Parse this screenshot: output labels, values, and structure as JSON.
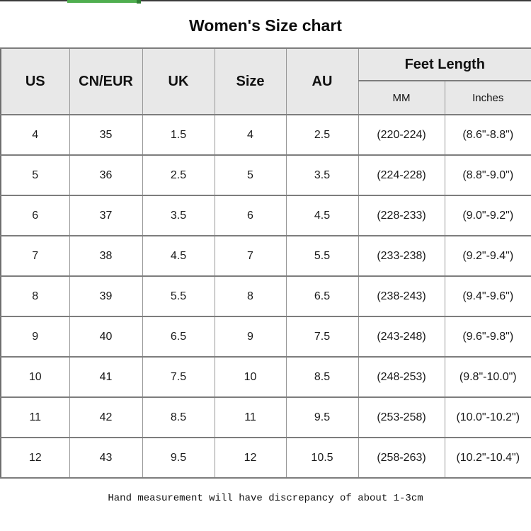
{
  "page": {
    "title": "Women's Size chart",
    "note": "Hand measurement will have discrepancy of about 1-3cm"
  },
  "progress_bar": {
    "track_color": "#3a3a3a",
    "bar_color": "#4fae4f",
    "cap_color": "#2e7d32"
  },
  "colors": {
    "header_bg": "#e8e8e8",
    "border": "#7d7d7d",
    "text": "#111111"
  },
  "chart_data": {
    "type": "table",
    "title": "Women's Size chart",
    "column_groups": [
      {
        "label": "US",
        "rowspan": 2
      },
      {
        "label": "CN/EUR",
        "rowspan": 2
      },
      {
        "label": "UK",
        "rowspan": 2
      },
      {
        "label": "Size",
        "rowspan": 2
      },
      {
        "label": "AU",
        "rowspan": 2
      },
      {
        "label": "Feet Length",
        "colspan": 2,
        "children": [
          "MM",
          "Inches"
        ]
      }
    ],
    "columns": [
      "US",
      "CN/EUR",
      "UK",
      "Size",
      "AU",
      "MM",
      "Inches"
    ],
    "rows": [
      [
        "4",
        "35",
        "1.5",
        "4",
        "2.5",
        "(220-224)",
        "(8.6\"-8.8\")"
      ],
      [
        "5",
        "36",
        "2.5",
        "5",
        "3.5",
        "(224-228)",
        "(8.8\"-9.0\")"
      ],
      [
        "6",
        "37",
        "3.5",
        "6",
        "4.5",
        "(228-233)",
        "(9.0\"-9.2\")"
      ],
      [
        "7",
        "38",
        "4.5",
        "7",
        "5.5",
        "(233-238)",
        "(9.2\"-9.4\")"
      ],
      [
        "8",
        "39",
        "5.5",
        "8",
        "6.5",
        "(238-243)",
        "(9.4\"-9.6\")"
      ],
      [
        "9",
        "40",
        "6.5",
        "9",
        "7.5",
        "(243-248)",
        "(9.6\"-9.8\")"
      ],
      [
        "10",
        "41",
        "7.5",
        "10",
        "8.5",
        "(248-253)",
        "(9.8\"-10.0\")"
      ],
      [
        "11",
        "42",
        "8.5",
        "11",
        "9.5",
        "(253-258)",
        "(10.0\"-10.2\")"
      ],
      [
        "12",
        "43",
        "9.5",
        "12",
        "10.5",
        "(258-263)",
        "(10.2\"-10.4\")"
      ]
    ],
    "footnote": "Hand measurement will have discrepancy of about 1-3cm",
    "layout": {
      "grid": "on",
      "header_rows": 2,
      "data_rows": 9
    }
  }
}
